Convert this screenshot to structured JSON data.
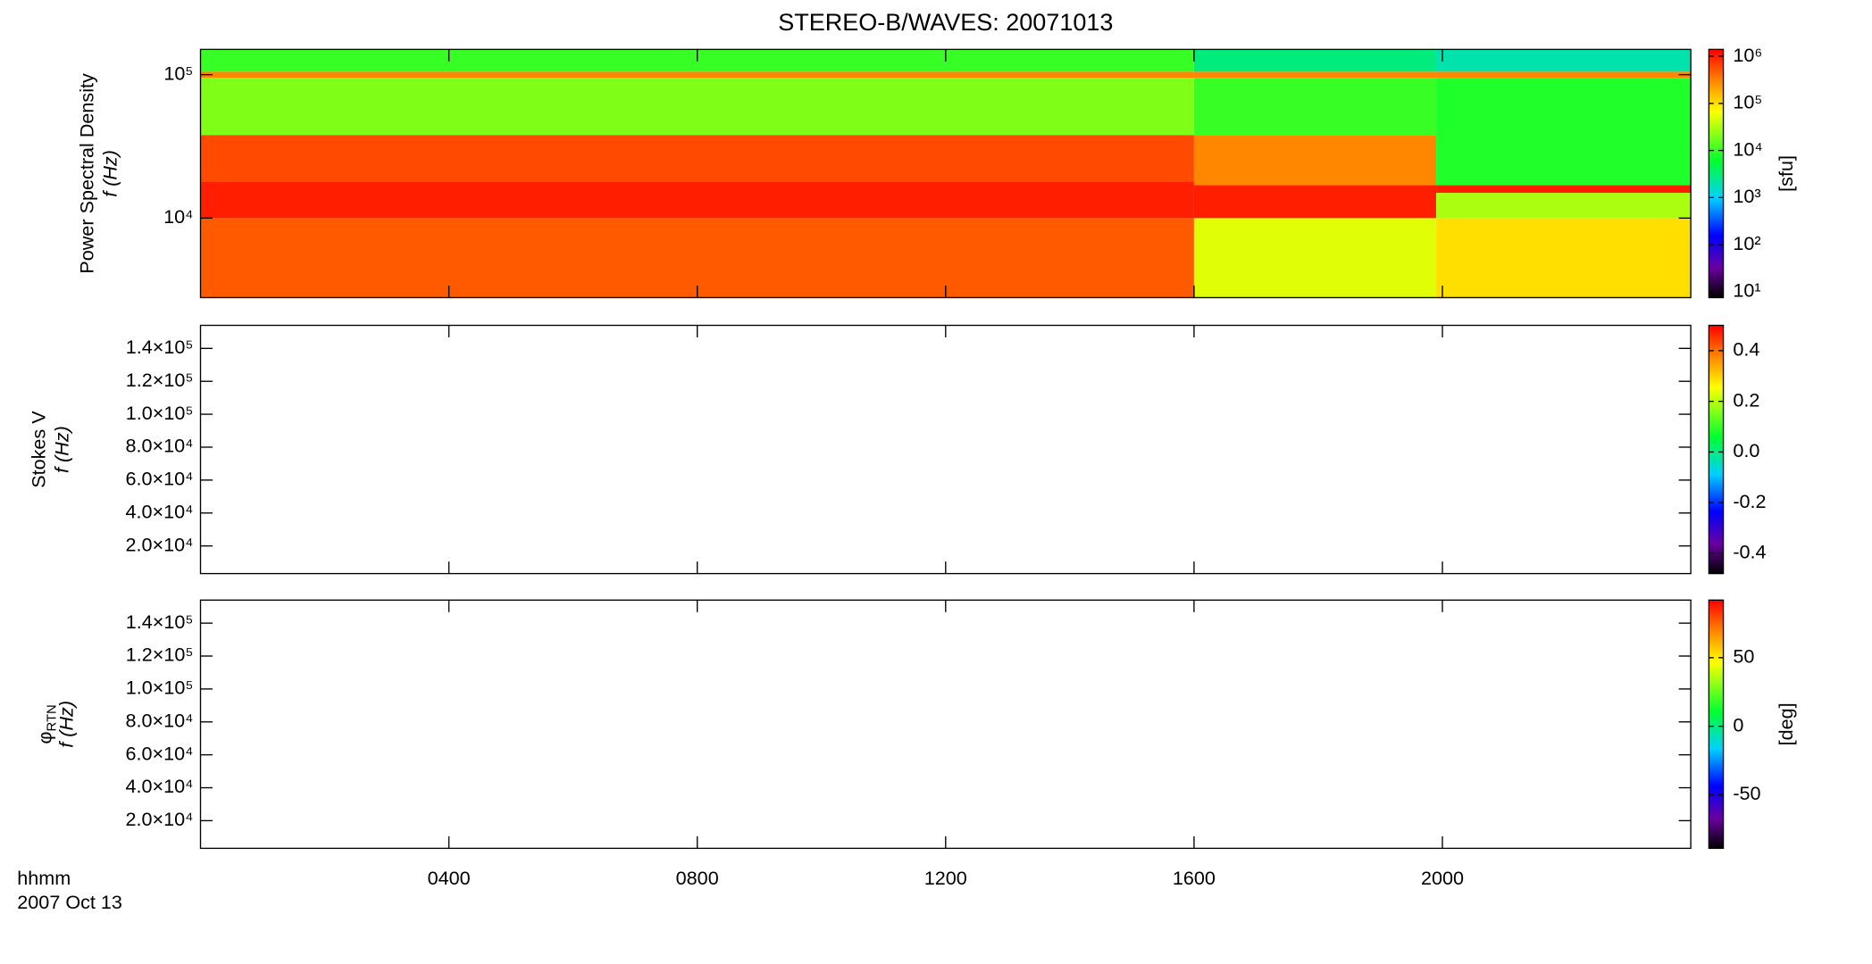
{
  "title": "STEREO-B/WAVES: 20071013",
  "x_axis": {
    "label": "hhmm",
    "date": "2007 Oct 13",
    "xlim": [
      0,
      24
    ],
    "xticks": [
      {
        "value": 4,
        "label": "0400"
      },
      {
        "value": 8,
        "label": "0800"
      },
      {
        "value": 12,
        "label": "1200"
      },
      {
        "value": 16,
        "label": "1600"
      },
      {
        "value": 20,
        "label": "2000"
      }
    ]
  },
  "chart_data": [
    {
      "type": "heatmap",
      "ylabel": "Power Spectral Density",
      "ylabel2": "f (Hz)",
      "ylog": true,
      "ylim": [
        2790,
        150000
      ],
      "yticks": [
        {
          "value": 10000,
          "label": "10⁴"
        },
        {
          "value": 100000,
          "label": "10⁵"
        }
      ],
      "colorbar": {
        "label": "[sfu]",
        "log": true,
        "lim": [
          7.5,
          1400000
        ],
        "ticks": [
          {
            "value": 10,
            "label": "10¹"
          },
          {
            "value": 100,
            "label": "10²"
          },
          {
            "value": 1000,
            "label": "10³"
          },
          {
            "value": 10000,
            "label": "10⁴"
          },
          {
            "value": 100000,
            "label": "10⁵"
          },
          {
            "value": 1000000,
            "label": "10⁶"
          }
        ]
      },
      "cells": [
        {
          "x": [
            0,
            16
          ],
          "y": [
            2790,
            10000
          ],
          "value": 500000
        },
        {
          "x": [
            0,
            16
          ],
          "y": [
            10000,
            18000
          ],
          "value": 1000000
        },
        {
          "x": [
            0,
            16
          ],
          "y": [
            18000,
            38000
          ],
          "value": 600000
        },
        {
          "x": [
            0,
            16
          ],
          "y": [
            38000,
            95000
          ],
          "value": 20000
        },
        {
          "x": [
            0,
            16
          ],
          "y": [
            95000,
            105000
          ],
          "value": 300000
        },
        {
          "x": [
            0,
            16
          ],
          "y": [
            105000,
            150000
          ],
          "value": 10000
        },
        {
          "x": [
            16,
            19.9
          ],
          "y": [
            2790,
            10000
          ],
          "value": 50000
        },
        {
          "x": [
            16,
            19.9
          ],
          "y": [
            10000,
            17000
          ],
          "value": 1000000
        },
        {
          "x": [
            16,
            19.9
          ],
          "y": [
            17000,
            38000
          ],
          "value": 300000
        },
        {
          "x": [
            16,
            19.9
          ],
          "y": [
            38000,
            95000
          ],
          "value": 10000
        },
        {
          "x": [
            16,
            19.9
          ],
          "y": [
            95000,
            105000
          ],
          "value": 300000
        },
        {
          "x": [
            16,
            19.9
          ],
          "y": [
            105000,
            150000
          ],
          "value": 3000
        },
        {
          "x": [
            19.9,
            24
          ],
          "y": [
            2790,
            10000
          ],
          "value": 100000
        },
        {
          "x": [
            19.9,
            24
          ],
          "y": [
            10000,
            15000
          ],
          "value": 30000
        },
        {
          "x": [
            19.9,
            24
          ],
          "y": [
            15000,
            17000
          ],
          "value": 1000000
        },
        {
          "x": [
            19.9,
            24
          ],
          "y": [
            17000,
            95000
          ],
          "value": 8000
        },
        {
          "x": [
            19.9,
            24
          ],
          "y": [
            95000,
            105000
          ],
          "value": 300000
        },
        {
          "x": [
            19.9,
            24
          ],
          "y": [
            105000,
            150000
          ],
          "value": 2000
        }
      ]
    },
    {
      "type": "heatmap",
      "ylabel": "Stokes V",
      "ylabel2": "f (Hz)",
      "ylog": false,
      "ylim": [
        3200,
        154000
      ],
      "yticks": [
        {
          "value": 20000,
          "label": "2.0×10⁴"
        },
        {
          "value": 40000,
          "label": "4.0×10⁴"
        },
        {
          "value": 60000,
          "label": "6.0×10⁴"
        },
        {
          "value": 80000,
          "label": "8.0×10⁴"
        },
        {
          "value": 100000,
          "label": "1.0×10⁵"
        },
        {
          "value": 120000,
          "label": "1.2×10⁵"
        },
        {
          "value": 140000,
          "label": "1.4×10⁵"
        }
      ],
      "colorbar": {
        "log": false,
        "lim": [
          -0.48,
          0.5
        ],
        "ticks": [
          -0.4,
          -0.2,
          {
            "value": 0,
            "label": "0.0"
          },
          0.2,
          0.4
        ]
      }
    },
    {
      "type": "heatmap",
      "ylabel": "φ",
      "ylabel_sub": "RTN",
      "ylabel2": "f (Hz)",
      "ylog": false,
      "ylim": [
        3200,
        154000
      ],
      "yticks": [
        {
          "value": 20000,
          "label": "2.0×10⁴"
        },
        {
          "value": 40000,
          "label": "4.0×10⁴"
        },
        {
          "value": 60000,
          "label": "6.0×10⁴"
        },
        {
          "value": 80000,
          "label": "8.0×10⁴"
        },
        {
          "value": 100000,
          "label": "1.0×10⁵"
        },
        {
          "value": 120000,
          "label": "1.2×10⁵"
        },
        {
          "value": 140000,
          "label": "1.4×10⁵"
        }
      ],
      "colorbar": {
        "label": "[deg]",
        "log": false,
        "lim": [
          -89,
          92
        ],
        "ticks": [
          -50,
          0,
          50
        ]
      }
    }
  ]
}
